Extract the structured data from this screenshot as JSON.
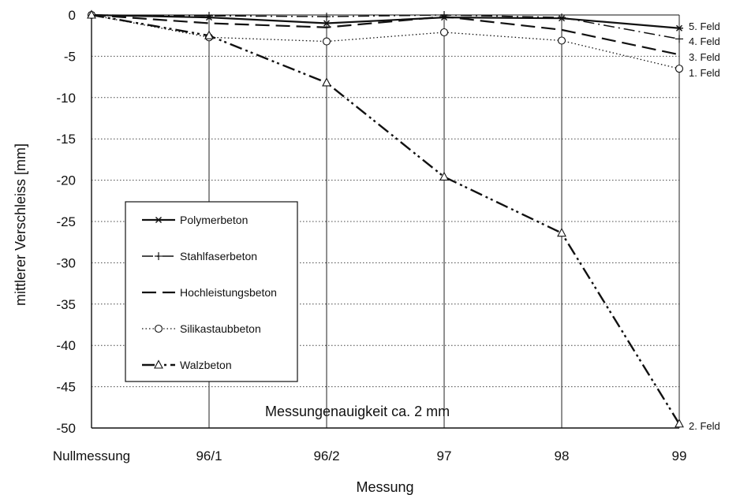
{
  "chart_data": {
    "type": "line",
    "xlabel": "Messung",
    "ylabel": "mittlerer Verschleiss [mm]",
    "categories": [
      "Nullmessung",
      "96/1",
      "96/2",
      "97",
      "98",
      "99"
    ],
    "ylim": [
      -50,
      0
    ],
    "yticks": [
      0,
      -5,
      -10,
      -15,
      -20,
      -25,
      -30,
      -35,
      -40,
      -45,
      -50
    ],
    "grid": "horizontal dotted, vertical solid",
    "legend_position": "lower-left inside plot",
    "annotation": "Messungenauigkeit ca. 2  mm",
    "series": [
      {
        "name": "Polymerbeton",
        "end_label": "5. Feld",
        "marker": "asterisk",
        "dash": "solid",
        "values": [
          0,
          -0.3,
          -1.0,
          -0.3,
          -0.4,
          -1.6
        ]
      },
      {
        "name": "Stahlfaserbeton",
        "end_label": "4. Feld",
        "marker": "plus",
        "dash": "dash-dot",
        "values": [
          0,
          -0.1,
          -0.2,
          0,
          -0.3,
          -2.9
        ]
      },
      {
        "name": "Hochleistungsbeton",
        "end_label": "3. Feld",
        "marker": "none",
        "dash": "long-dash",
        "values": [
          0,
          -1.0,
          -1.5,
          -0.2,
          -1.8,
          -4.8
        ]
      },
      {
        "name": "Silikastaubbeton",
        "end_label": "1. Feld",
        "marker": "circle",
        "dash": "dotted",
        "values": [
          0,
          -2.7,
          -3.2,
          -2.1,
          -3.1,
          -6.5
        ]
      },
      {
        "name": "Walzbeton",
        "end_label": "2. Feld",
        "marker": "triangle",
        "dash": "dash-dot-dot",
        "values": [
          0,
          -2.5,
          -8.2,
          -19.6,
          -26.4,
          -49.5
        ]
      }
    ]
  }
}
